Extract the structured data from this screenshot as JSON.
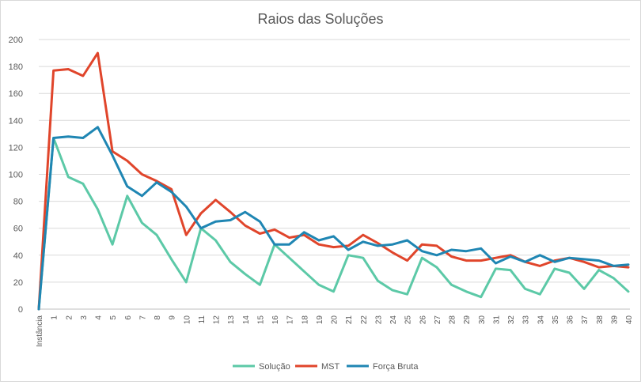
{
  "chart_data": {
    "type": "line",
    "title": "Raios das Soluções",
    "xlabel": "",
    "ylabel": "",
    "categories": [
      "Instância",
      "1",
      "2",
      "3",
      "4",
      "5",
      "6",
      "7",
      "8",
      "9",
      "10",
      "11",
      "12",
      "13",
      "14",
      "15",
      "16",
      "17",
      "18",
      "19",
      "20",
      "21",
      "22",
      "23",
      "24",
      "25",
      "26",
      "27",
      "28",
      "29",
      "30",
      "31",
      "32",
      "33",
      "34",
      "35",
      "36",
      "37",
      "38",
      "39",
      "40"
    ],
    "ylim": [
      0,
      200
    ],
    "yticks": [
      0,
      20,
      40,
      60,
      80,
      100,
      120,
      140,
      160,
      180,
      200
    ],
    "grid": true,
    "legend_position": "bottom",
    "series": [
      {
        "name": "Solução",
        "color": "#5cc9a7",
        "values": [
          0,
          127,
          98,
          93,
          74,
          48,
          84,
          64,
          55,
          37,
          20,
          60,
          51,
          35,
          26,
          18,
          48,
          38,
          28,
          18,
          13,
          40,
          38,
          21,
          14,
          11,
          38,
          31,
          18,
          13,
          9,
          30,
          29,
          15,
          11,
          30,
          27,
          15,
          29,
          23,
          13
        ]
      },
      {
        "name": "MST",
        "color": "#e0452b",
        "values": [
          0,
          177,
          178,
          173,
          190,
          117,
          110,
          100,
          95,
          89,
          55,
          71,
          81,
          72,
          62,
          56,
          59,
          53,
          55,
          48,
          46,
          47,
          55,
          49,
          42,
          36,
          48,
          47,
          39,
          36,
          36,
          38,
          40,
          35,
          32,
          36,
          38,
          35,
          31,
          32,
          31
        ]
      },
      {
        "name": "Força Bruta",
        "color": "#1f86b3",
        "values": [
          0,
          127,
          128,
          127,
          135,
          114,
          91,
          84,
          94,
          87,
          76,
          60,
          65,
          66,
          72,
          65,
          48,
          48,
          57,
          51,
          54,
          44,
          50,
          47,
          48,
          51,
          43,
          40,
          44,
          43,
          45,
          34,
          39,
          35,
          40,
          35,
          38,
          37,
          36,
          32,
          33
        ]
      }
    ]
  }
}
